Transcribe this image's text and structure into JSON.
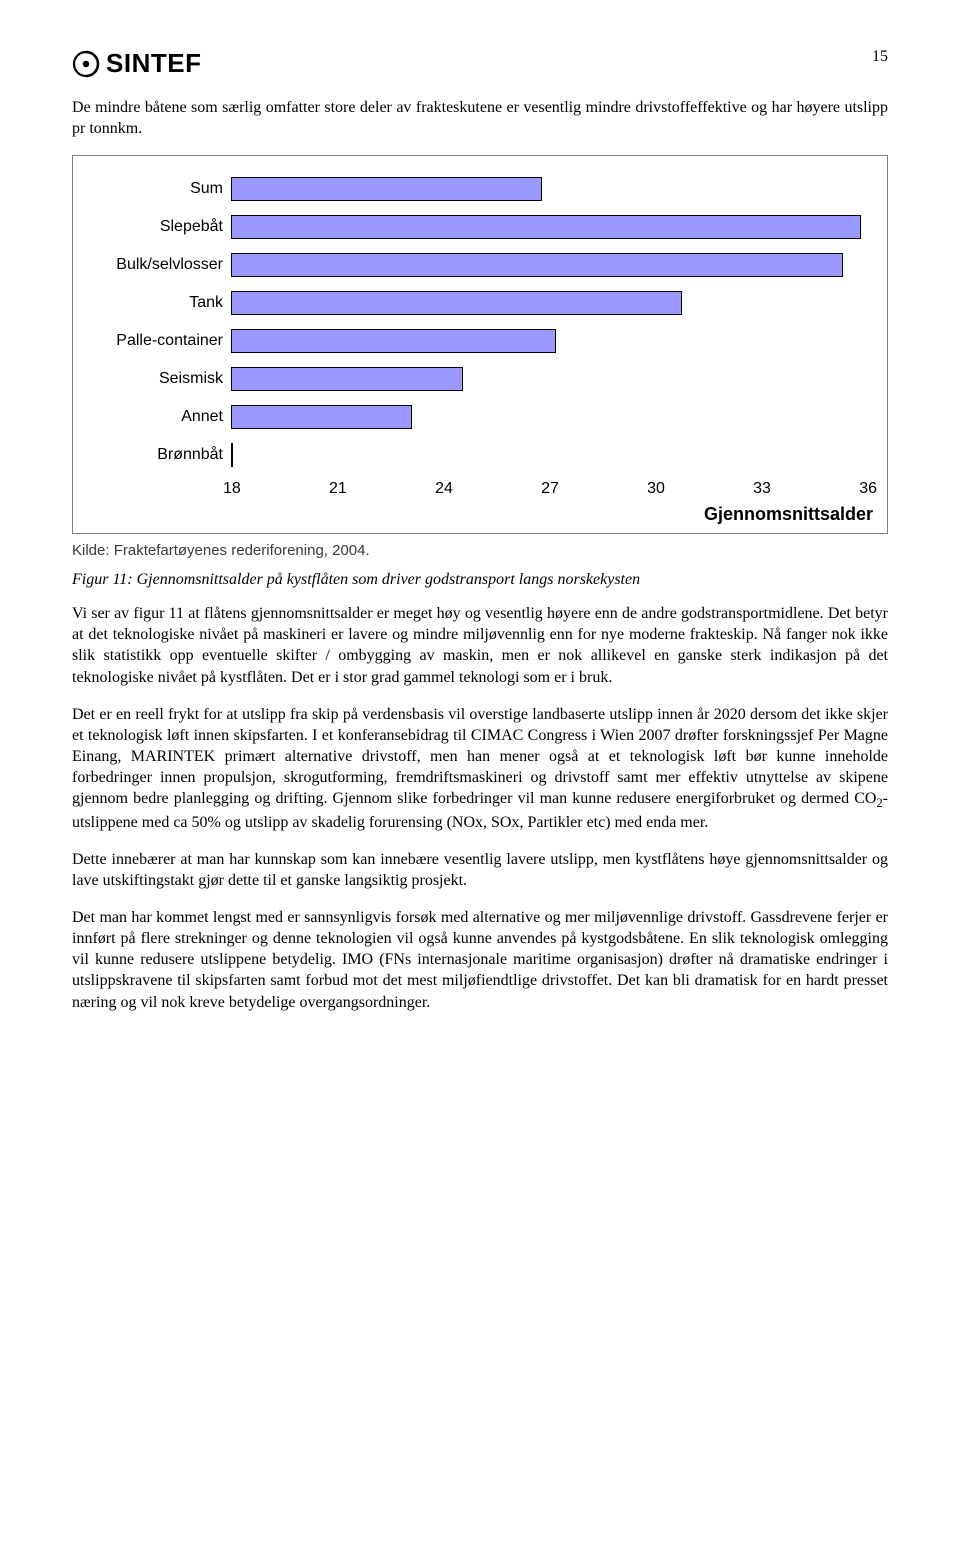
{
  "page": {
    "number": "15",
    "logo_text": "SINTEF"
  },
  "paragraphs": {
    "p1": "De mindre båtene som særlig omfatter store deler av frakteskutene er vesentlig mindre drivstoffeffektive og har høyere utslipp pr tonnkm.",
    "caption": "Figur 11:  Gjennomsnittsalder på kystflåten som driver godstransport langs norskekysten",
    "p2": "Vi ser av figur 11 at flåtens gjennomsnittsalder er meget høy og vesentlig høyere enn de andre godstransportmidlene. Det betyr at det teknologiske nivået på maskineri er lavere og mindre miljøvennlig enn for nye moderne frakteskip. Nå fanger nok ikke slik statistikk opp eventuelle skifter / ombygging av maskin, men er nok allikevel en ganske sterk indikasjon på det teknologiske nivået på kystflåten.  Det er i stor grad gammel teknologi som er i bruk.",
    "p3a": "Det er en reell frykt for at utslipp fra skip på verdensbasis vil overstige landbaserte utslipp innen år 2020 dersom det ikke skjer et teknologisk løft innen skipsfarten.  I et konferansebidrag til CIMAC Congress i Wien 2007  drøfter forskningssjef Per Magne Einang, MARINTEK primært alternative drivstoff, men han mener også at et teknologisk løft bør kunne inneholde forbedringer innen propulsjon, skrogutforming, fremdriftsmaskineri og drivstoff samt mer effektiv utnyttelse av skipene gjennom bedre planlegging og drifting.  Gjennom slike forbedringer vil man kunne redusere energiforbruket og dermed CO",
    "p3b": "-utslippene med ca 50% og utslipp av skadelig forurensing (NOx, SOx, Partikler etc) med enda mer.",
    "p4": "Dette innebærer at man har kunnskap som kan innebære vesentlig lavere utslipp, men kystflåtens høye gjennomsnittsalder og lave utskiftingstakt gjør dette til et ganske langsiktig prosjekt.",
    "p5": "Det man har kommet lengst med er sannsynligvis forsøk med alternative og mer miljøvennlige drivstoff.  Gassdrevene ferjer er innført på flere strekninger og denne teknologien vil også kunne anvendes på kystgodsbåtene.  En slik teknologisk omlegging vil kunne redusere utslippene betydelig.  IMO (FNs internasjonale maritime organisasjon) drøfter nå dramatiske endringer i utslippskravene til skipsfarten samt forbud mot det mest miljøfiendtlige drivstoffet. Det kan bli dramatisk for en hardt presset næring og vil nok kreve betydelige overgangsordninger."
  },
  "chart": {
    "type": "bar",
    "orientation": "horizontal",
    "categories": [
      "Sum",
      "Slepebåt",
      "Bulk/selvlosser",
      "Tank",
      "Palle-container",
      "Seismisk",
      "Annet",
      "Brønnbåt"
    ],
    "values": [
      26.6,
      35.5,
      35.0,
      30.5,
      27.0,
      24.4,
      23.0,
      18.0
    ],
    "bar_color": "#9999ff",
    "bar_border_color": "#000000",
    "xlim": [
      18,
      36
    ],
    "xticks": [
      "18",
      "21",
      "24",
      "27",
      "30",
      "33",
      "36"
    ],
    "xlabel": "Gjennomsnittsalder",
    "background_color": "#ffffff",
    "box_border_color": "#808080",
    "cat_fontsize": 16,
    "tick_fontsize": 16,
    "label_fontsize": 18,
    "source": "Kilde: Fraktefartøyenes rederiforening, 2004."
  }
}
